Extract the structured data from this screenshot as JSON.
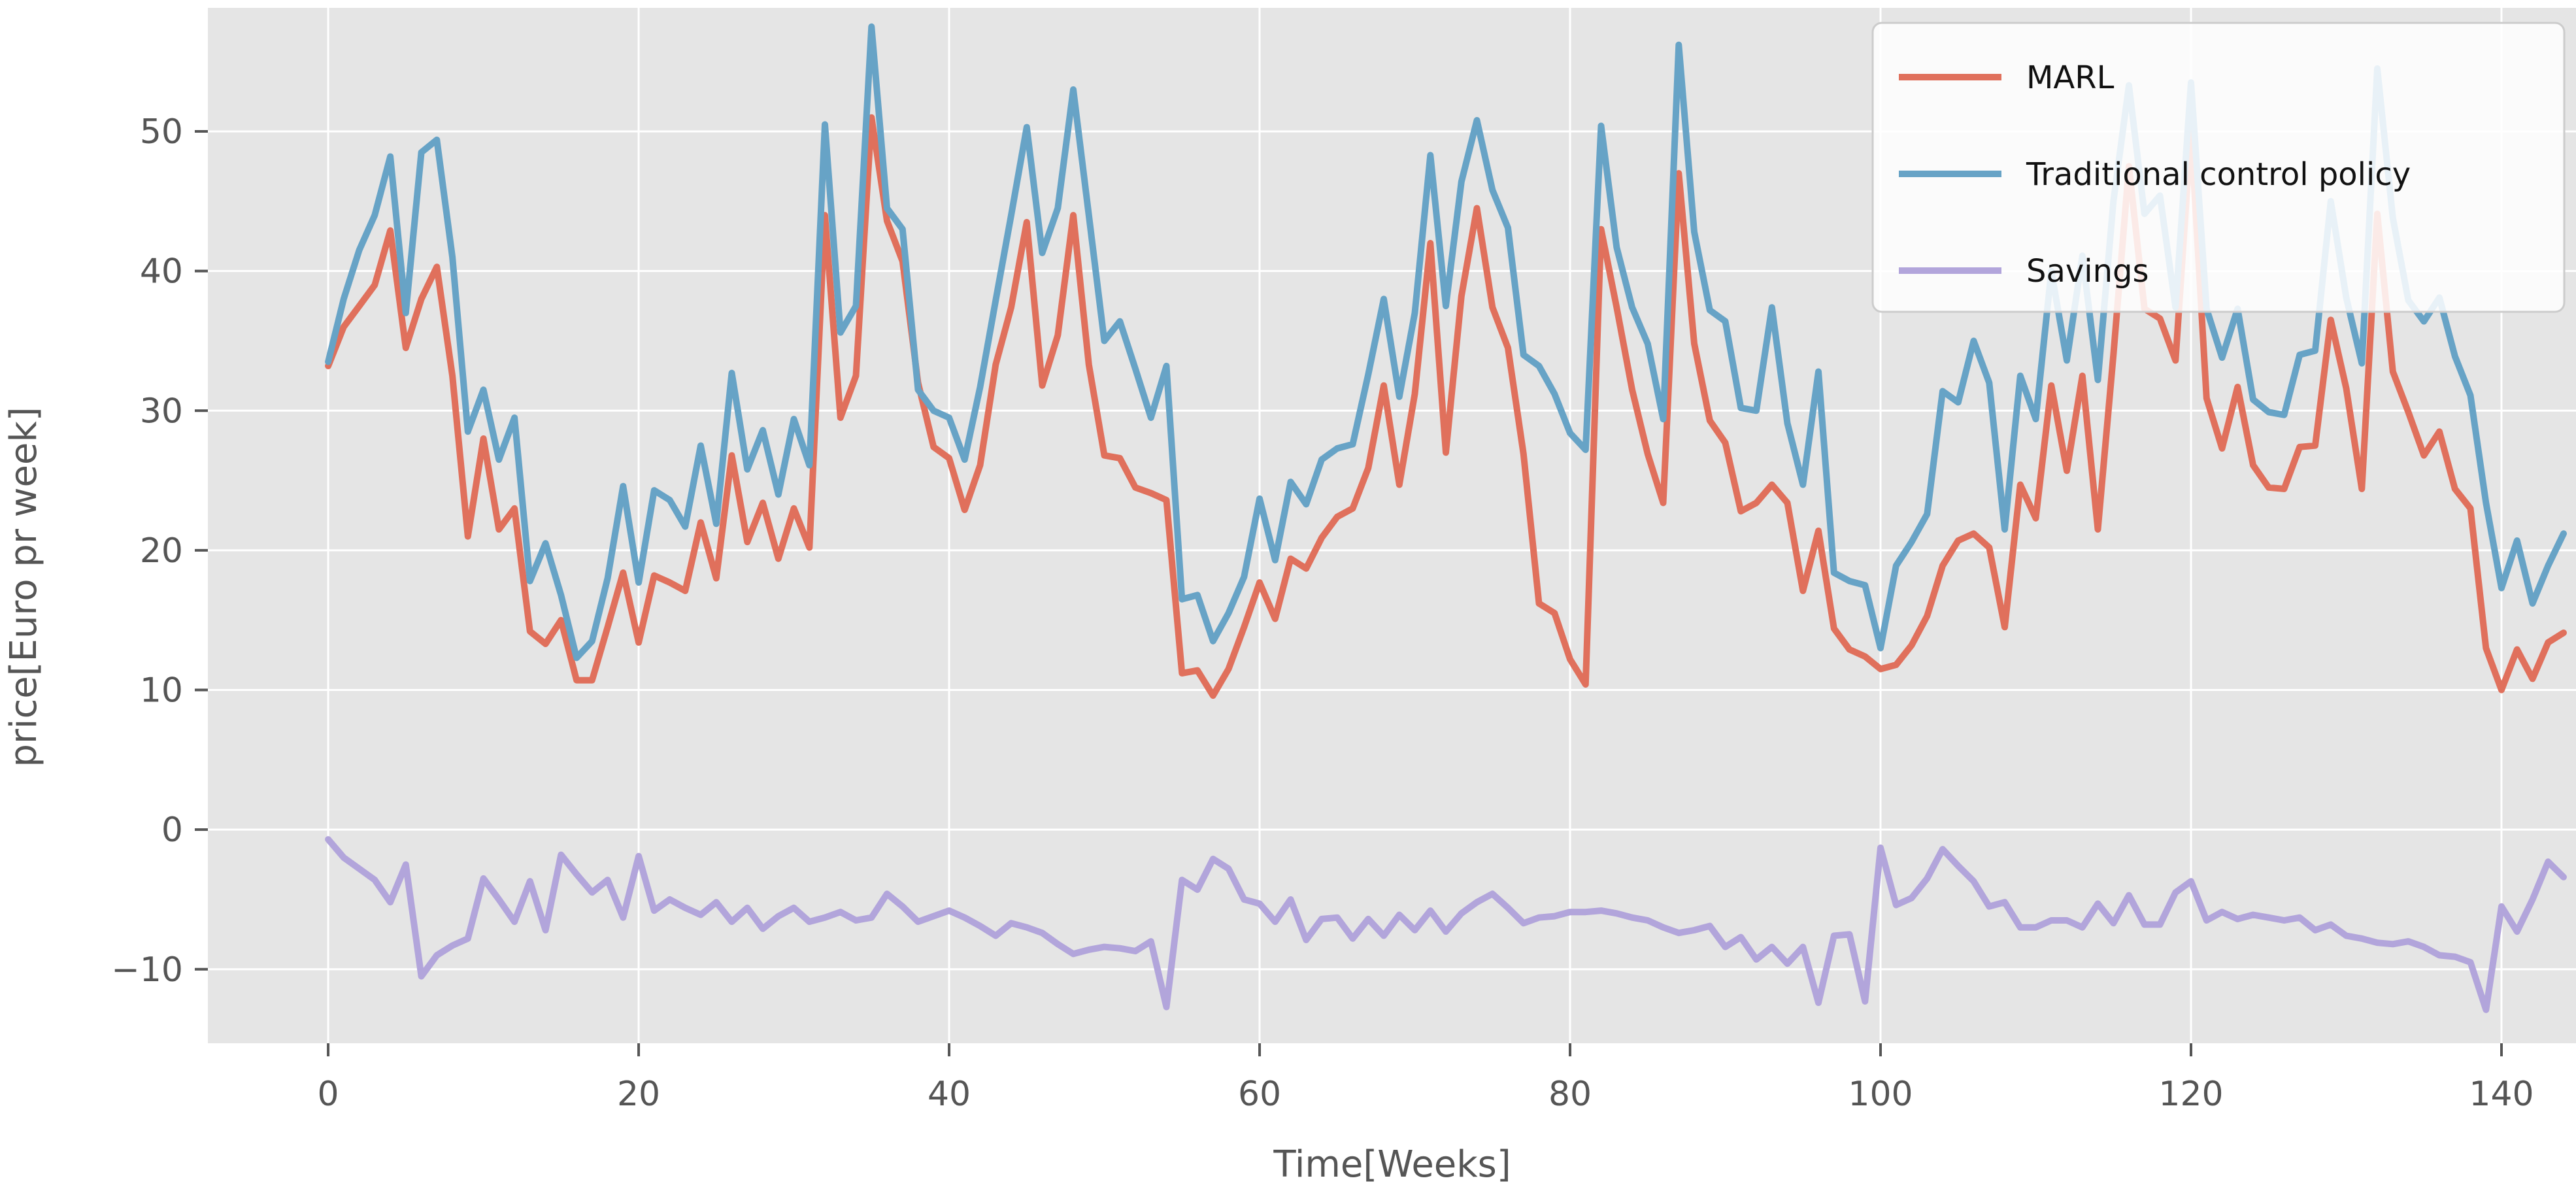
{
  "figure": {
    "background": "#ffffff",
    "plot_background": "#e5e5e5",
    "grid_color": "#ffffff",
    "tick_color": "#555555",
    "label_color": "#555555",
    "legend_text_color": "#111111",
    "legend_bg": "rgba(255,255,255,0.85)",
    "legend_border": "#cccccc"
  },
  "chart_data": {
    "type": "line",
    "title": "",
    "xlabel": "Time[Weeks]",
    "ylabel": "price[Euro pr week]",
    "x_ticks": [
      0,
      20,
      40,
      60,
      80,
      100,
      120,
      140
    ],
    "y_ticks": [
      -10,
      0,
      10,
      20,
      30,
      40,
      50
    ],
    "xlim": [
      -7.75,
      144.8
    ],
    "ylim": [
      -15.3,
      58.85
    ],
    "grid": true,
    "legend_position": "upper right",
    "x_start": 0,
    "x_step": 1,
    "series": [
      {
        "name": "MARL",
        "color": "#e0705c",
        "values": [
          33.2,
          36,
          37.5,
          39,
          42.9,
          34.5,
          38,
          40.3,
          32.5,
          21,
          28,
          21.5,
          23,
          14.2,
          13.3,
          15,
          10.7,
          10.7,
          14.5,
          18.4,
          13.4,
          18.2,
          17.7,
          17.1,
          22,
          18,
          26.8,
          20.6,
          23.4,
          19.4,
          23,
          20.2,
          44,
          29.5,
          32.5,
          51,
          43.6,
          40.7,
          32,
          27.4,
          26.6,
          22.9,
          26.1,
          33.3,
          37.4,
          43.5,
          31.8,
          35.4,
          44,
          33.3,
          26.8,
          26.6,
          24.5,
          24.1,
          23.6,
          11.2,
          11.4,
          9.6,
          11.5,
          14.5,
          17.7,
          15.1,
          19.4,
          18.7,
          20.9,
          22.4,
          23,
          25.9,
          31.8,
          24.7,
          31.2,
          42,
          27,
          38.2,
          44.5,
          37.4,
          34.5,
          26.9,
          16.2,
          15.5,
          12.2,
          10.4,
          43,
          37.4,
          31.5,
          26.9,
          23.4,
          47,
          34.8,
          29.3,
          27.7,
          22.8,
          23.4,
          24.7,
          23.4,
          17.1,
          21.4,
          14.4,
          12.9,
          12.4,
          11.5,
          11.8,
          13.2,
          15.3,
          18.9,
          20.7,
          21.2,
          20.2,
          14.5,
          24.7,
          22.3,
          31.8,
          25.7,
          32.5,
          21.5,
          34,
          47.5,
          37.3,
          36.6,
          33.6,
          50,
          30.9,
          27.3,
          31.7,
          26.1,
          24.5,
          24.4,
          27.4,
          27.5,
          36.5,
          31.6,
          24.4,
          44.1,
          32.8,
          29.9,
          26.8,
          28.5,
          24.4,
          23,
          13,
          10,
          12.9,
          10.8,
          13.4,
          14.1
        ]
      },
      {
        "name": "Traditional control policy",
        "color": "#67a3c6",
        "values": [
          33.5,
          38,
          41.5,
          44,
          48.2,
          37,
          48.5,
          49.4,
          41,
          28.5,
          31.5,
          26.5,
          29.5,
          17.8,
          20.5,
          16.8,
          12.3,
          13.5,
          18,
          24.6,
          17.7,
          24.3,
          23.6,
          21.7,
          27.5,
          21.9,
          32.7,
          25.8,
          28.6,
          24,
          29.4,
          26.1,
          50.5,
          35.6,
          37.5,
          57.5,
          44.5,
          43,
          31.5,
          30,
          29.5,
          26.5,
          31.7,
          37.9,
          44,
          50.3,
          41.3,
          44.5,
          53,
          44,
          35,
          36.4,
          33,
          29.5,
          33.2,
          16.5,
          16.8,
          13.5,
          15.5,
          18.1,
          23.7,
          19.3,
          24.9,
          23.3,
          26.5,
          27.3,
          27.6,
          32.6,
          38,
          31,
          37,
          48.3,
          37.5,
          46.4,
          50.8,
          45.8,
          43.1,
          34,
          33.2,
          31.2,
          28.4,
          27.2,
          50.4,
          41.7,
          37.4,
          34.8,
          29.4,
          56.2,
          42.8,
          37.2,
          36.4,
          30.2,
          30,
          37.4,
          29.1,
          24.7,
          32.8,
          18.4,
          17.8,
          17.5,
          13,
          18.9,
          20.6,
          22.6,
          31.4,
          30.6,
          35,
          32,
          21.5,
          32.5,
          29.4,
          40,
          33.6,
          41.1,
          32.2,
          45,
          53.3,
          44.1,
          45.4,
          37.4,
          53.5,
          37.3,
          33.8,
          37.3,
          30.8,
          29.9,
          29.7,
          34,
          34.3,
          45,
          38.1,
          33.4,
          54.5,
          43.8,
          37.9,
          36.4,
          38.1,
          33.9,
          31.1,
          23.4,
          17.3,
          20.7,
          16.2,
          18.9,
          21.2
        ]
      },
      {
        "name": "Savings",
        "color": "#b2a5db",
        "values": [
          -0.7,
          -2,
          -2.8,
          -3.6,
          -5.2,
          -2.5,
          -10.5,
          -9,
          -8.3,
          -7.8,
          -3.5,
          -5,
          -6.6,
          -3.7,
          -7.2,
          -1.8,
          -3.2,
          -4.5,
          -3.6,
          -6.3,
          -1.9,
          -5.8,
          -5,
          -5.6,
          -6.1,
          -5.2,
          -6.6,
          -5.6,
          -7.1,
          -6.2,
          -5.6,
          -6.6,
          -6.3,
          -5.9,
          -6.5,
          -6.3,
          -4.6,
          -5.5,
          -6.6,
          -6.2,
          -5.8,
          -6.3,
          -6.9,
          -7.6,
          -6.7,
          -7,
          -7.4,
          -8.2,
          -8.9,
          -8.6,
          -8.4,
          -8.5,
          -8.7,
          -8,
          -12.7,
          -3.6,
          -4.3,
          -2.1,
          -2.8,
          -5,
          -5.3,
          -6.6,
          -5,
          -7.9,
          -6.4,
          -6.3,
          -7.8,
          -6.4,
          -7.6,
          -6.1,
          -7.2,
          -5.8,
          -7.3,
          -6,
          -5.2,
          -4.6,
          -5.6,
          -6.7,
          -6.3,
          -6.2,
          -5.9,
          -5.9,
          -5.8,
          -6,
          -6.3,
          -6.5,
          -7,
          -7.4,
          -7.2,
          -6.9,
          -8.4,
          -7.7,
          -9.3,
          -8.4,
          -9.6,
          -8.4,
          -12.4,
          -7.6,
          -7.5,
          -12.3,
          -1.3,
          -5.4,
          -4.9,
          -3.5,
          -1.4,
          -2.6,
          -3.7,
          -5.5,
          -5.2,
          -7,
          -7,
          -6.5,
          -6.5,
          -7,
          -5.3,
          -6.7,
          -4.7,
          -6.8,
          -6.8,
          -4.5,
          -3.7,
          -6.5,
          -5.9,
          -6.4,
          -6.1,
          -6.3,
          -6.5,
          -6.3,
          -7.2,
          -6.8,
          -7.6,
          -7.8,
          -8.1,
          -8.2,
          -8,
          -8.4,
          -9,
          -9.1,
          -9.5,
          -12.9,
          -5.5,
          -7.3,
          -5,
          -2.3,
          -3.4
        ]
      }
    ]
  }
}
